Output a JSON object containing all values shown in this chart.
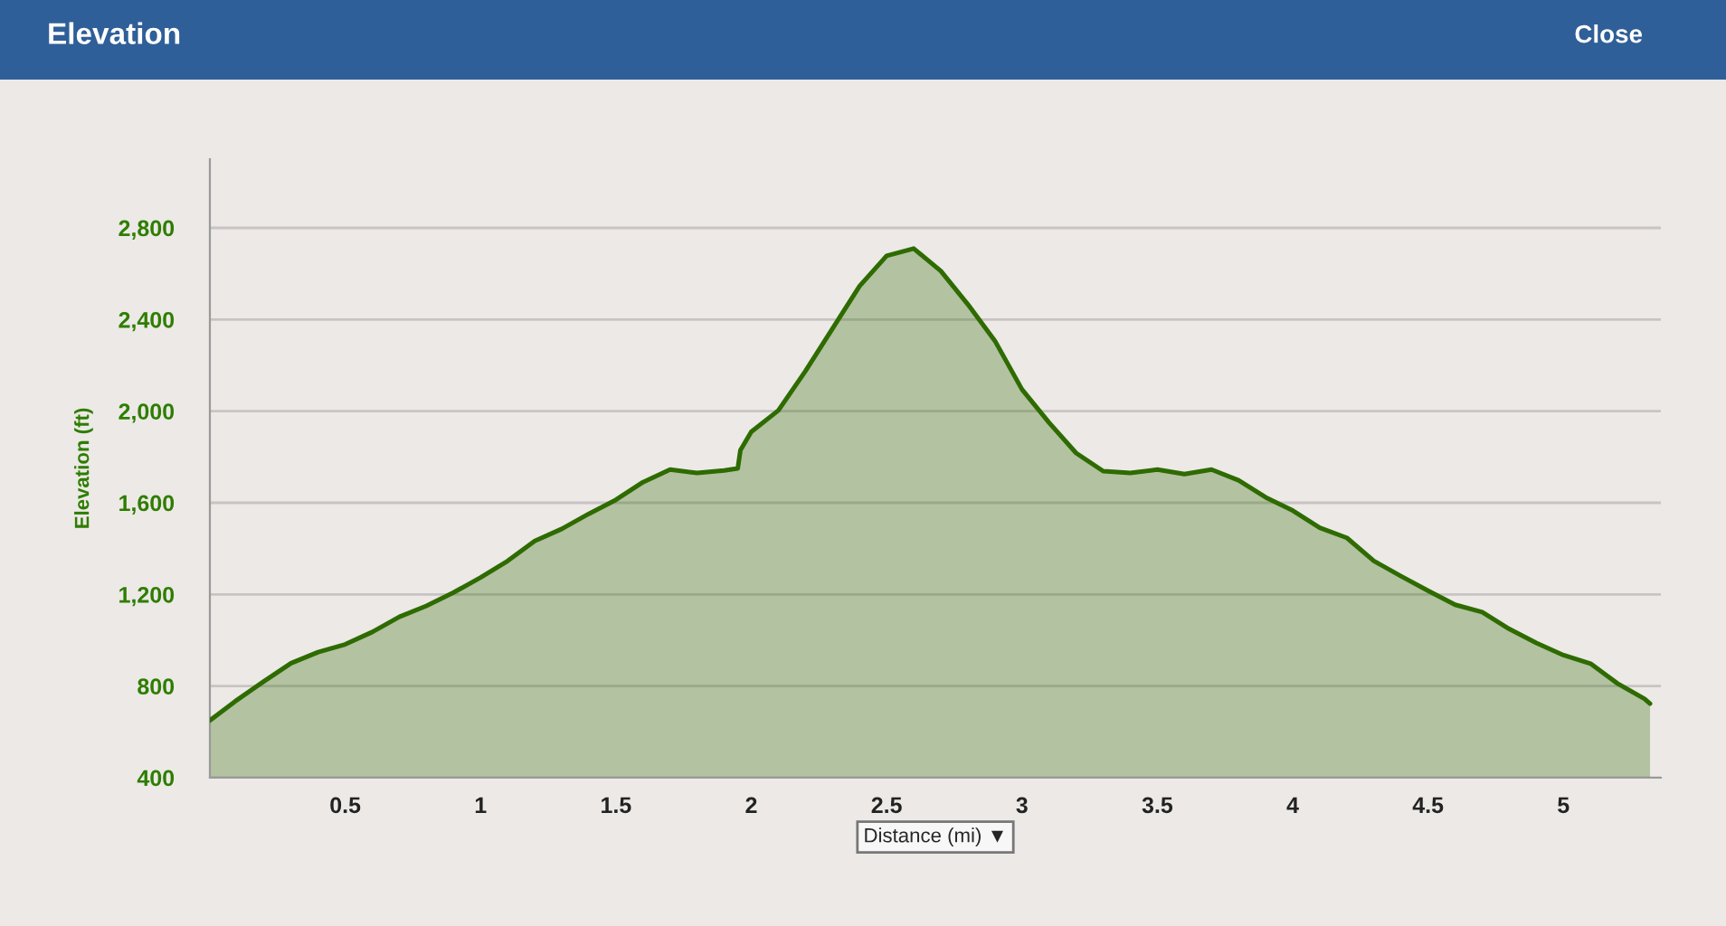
{
  "chart_data": {
    "type": "area",
    "title": "Elevation",
    "xlabel": "Distance (mi) ▼",
    "ylabel": "Elevation (ft)",
    "annotations": [
      "Close"
    ],
    "x": [
      0,
      0.094,
      0.2,
      0.3,
      0.4,
      0.5,
      0.6,
      0.7,
      0.8,
      0.9,
      1.0,
      1.1,
      1.2,
      1.3,
      1.4,
      1.5,
      1.6,
      1.7,
      1.8,
      1.9,
      1.95,
      1.96,
      2.0,
      2.1,
      2.2,
      2.3,
      2.4,
      2.5,
      2.6,
      2.7,
      2.8,
      2.9,
      3.0,
      3.1,
      3.2,
      3.3,
      3.4,
      3.5,
      3.6,
      3.7,
      3.8,
      3.9,
      4.0,
      4.1,
      4.2,
      4.3,
      4.4,
      4.5,
      4.6,
      4.7,
      4.8,
      4.9,
      5.0,
      5.1,
      5.2,
      5.3,
      5.32
    ],
    "series": [
      {
        "color": "#2e6b00",
        "values": [
          650,
          734,
          821,
          900,
          948,
          982,
          1036,
          1102,
          1150,
          1208,
          1274,
          1346,
          1433,
          1486,
          1552,
          1613,
          1690,
          1745,
          1730,
          1741,
          1750,
          1830,
          1910,
          2003,
          2175,
          2360,
          2546,
          2678,
          2710,
          2612,
          2466,
          2307,
          2095,
          1950,
          1817,
          1738,
          1730,
          1745,
          1725,
          1745,
          1698,
          1624,
          1566,
          1491,
          1447,
          1346,
          1280,
          1216,
          1155,
          1123,
          1049,
          988,
          935,
          898,
          811,
          744,
          723
        ]
      }
    ],
    "xlim": [
      0,
      5.36
    ],
    "ylim": [
      400,
      3100
    ],
    "xticks": [
      {
        "value": 0,
        "label": null
      },
      {
        "value": 0.5,
        "label": "0.5"
      },
      {
        "value": 1,
        "label": "1"
      },
      {
        "value": 1.5,
        "label": "1.5"
      },
      {
        "value": 2,
        "label": "2"
      },
      {
        "value": 2.5,
        "label": "2.5"
      },
      {
        "value": 3,
        "label": "3"
      },
      {
        "value": 3.5,
        "label": "3.5"
      },
      {
        "value": 4,
        "label": "4"
      },
      {
        "value": 4.5,
        "label": "4.5"
      },
      {
        "value": 5,
        "label": "5"
      }
    ],
    "yticks": [
      {
        "value": 400,
        "label": "400"
      },
      {
        "value": 800,
        "label": "800"
      },
      {
        "value": 1200,
        "label": "1,200"
      },
      {
        "value": 1600,
        "label": "1,600"
      },
      {
        "value": 2000,
        "label": "2,000"
      },
      {
        "value": 2400,
        "label": "2,400"
      },
      {
        "value": 2800,
        "label": "2,800"
      }
    ],
    "grid": "y",
    "legend": false
  }
}
